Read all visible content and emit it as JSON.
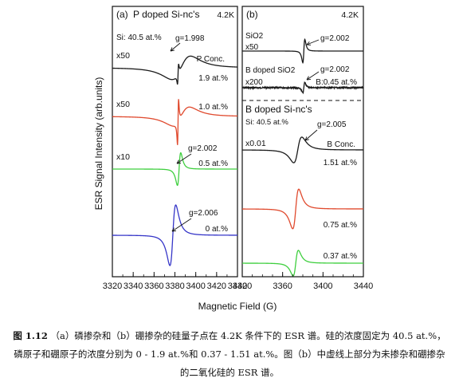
{
  "figure": {
    "ylabel": "ESR Signal Intensity (arb.units)",
    "xlabel": "Magnetic Field (G)"
  },
  "caption": {
    "label": "图 1.12",
    "text": "（a）磷掺杂和（b）硼掺杂的硅量子点在 4.2K 条件下的 ESR 谱。硅的浓度固定为 40.5 at.%，磷原子和硼原子的浓度分别为 0 - 1.9 at.%和 0.37 - 1.51 at.%。图（b）中虚线上部分为未掺杂和硼掺杂的二氧化硅的 ESR 谱。"
  },
  "colors": {
    "black": "#1a1a1a",
    "red": "#e04a2e",
    "green": "#3fcf3f",
    "blue": "#3636c8"
  },
  "chart_data": [
    {
      "type": "line",
      "panel": "(a)",
      "title": "P doped Si-nc's",
      "temperature": "4.2K",
      "xlabel": "Magnetic Field (G)",
      "ylabel": "ESR Signal Intensity (arb.units)",
      "xlim": [
        3320,
        3440
      ],
      "xticks": [
        3320,
        3340,
        3360,
        3380,
        3400,
        3420,
        3440
      ],
      "grid": false,
      "annotations": [
        "Si: 40.5 at.%",
        "P Conc.",
        "g=1.998",
        "g=2.002",
        "g=2.006"
      ],
      "series": [
        {
          "conc": "1.9 at.%",
          "scale": "x50",
          "color": "#1a1a1a",
          "center": 3386,
          "g": "g=1.998",
          "shape": "broad",
          "amp": 20,
          "width": 9,
          "spike": 16
        },
        {
          "conc": "1.0 at.%",
          "scale": "x50",
          "color": "#e04a2e",
          "center": 3386,
          "g": "",
          "shape": "broad",
          "amp": 16,
          "width": 8,
          "spike": 38
        },
        {
          "conc": "0.5 at.%",
          "scale": "x10",
          "color": "#3fcf3f",
          "center": 3384,
          "g": "g=2.002",
          "shape": "narrow",
          "amp": 28,
          "width": 1.6,
          "spike": 0
        },
        {
          "conc": "0 at.%",
          "scale": "",
          "color": "#3636c8",
          "center": 3378,
          "g": "g=2.006",
          "shape": "medium",
          "amp": 52,
          "width": 2.8,
          "spike": 0
        }
      ]
    },
    {
      "type": "line",
      "panel": "(b)",
      "title": "B doped Si-nc's",
      "temperature": "4.2K",
      "xlabel": "Magnetic Field (G)",
      "xlim": [
        3320,
        3440
      ],
      "xticks": [
        3320,
        3360,
        3400,
        3440
      ],
      "grid": false,
      "annotations": [
        "Si: 40.5 at.%",
        "B Conc.",
        "g=2.005",
        "g=2.002",
        "B:0.45 at.%"
      ],
      "upper_series": [
        {
          "label": "SiO2",
          "scale": "x50",
          "color": "#1a1a1a",
          "center": 3381,
          "g": "g=2.002",
          "shape": "narrow",
          "amp": 20,
          "width": 1.0,
          "noise": 0
        },
        {
          "label": "B doped SiO2",
          "scale": "x200",
          "color": "#1a1a1a",
          "center": 3381,
          "g": "g=2.002",
          "conc": "B:0.45 at.%",
          "shape": "narrow",
          "amp": 9,
          "width": 1.0,
          "noise": 1.6
        }
      ],
      "series": [
        {
          "conc": "1.51 at.%",
          "scale": "x0.01",
          "color": "#1a1a1a",
          "center": 3375,
          "g": "g=2.005",
          "shape": "medium",
          "amp": 22,
          "width": 4.0
        },
        {
          "conc": "0.75 at.%",
          "scale": "",
          "color": "#e04a2e",
          "center": 3373,
          "g": "",
          "shape": "medium",
          "amp": 34,
          "width": 3.0
        },
        {
          "conc": "0.37 at.%",
          "scale": "",
          "color": "#3fcf3f",
          "center": 3373,
          "g": "",
          "shape": "medium",
          "amp": 22,
          "width": 2.6
        }
      ]
    }
  ]
}
